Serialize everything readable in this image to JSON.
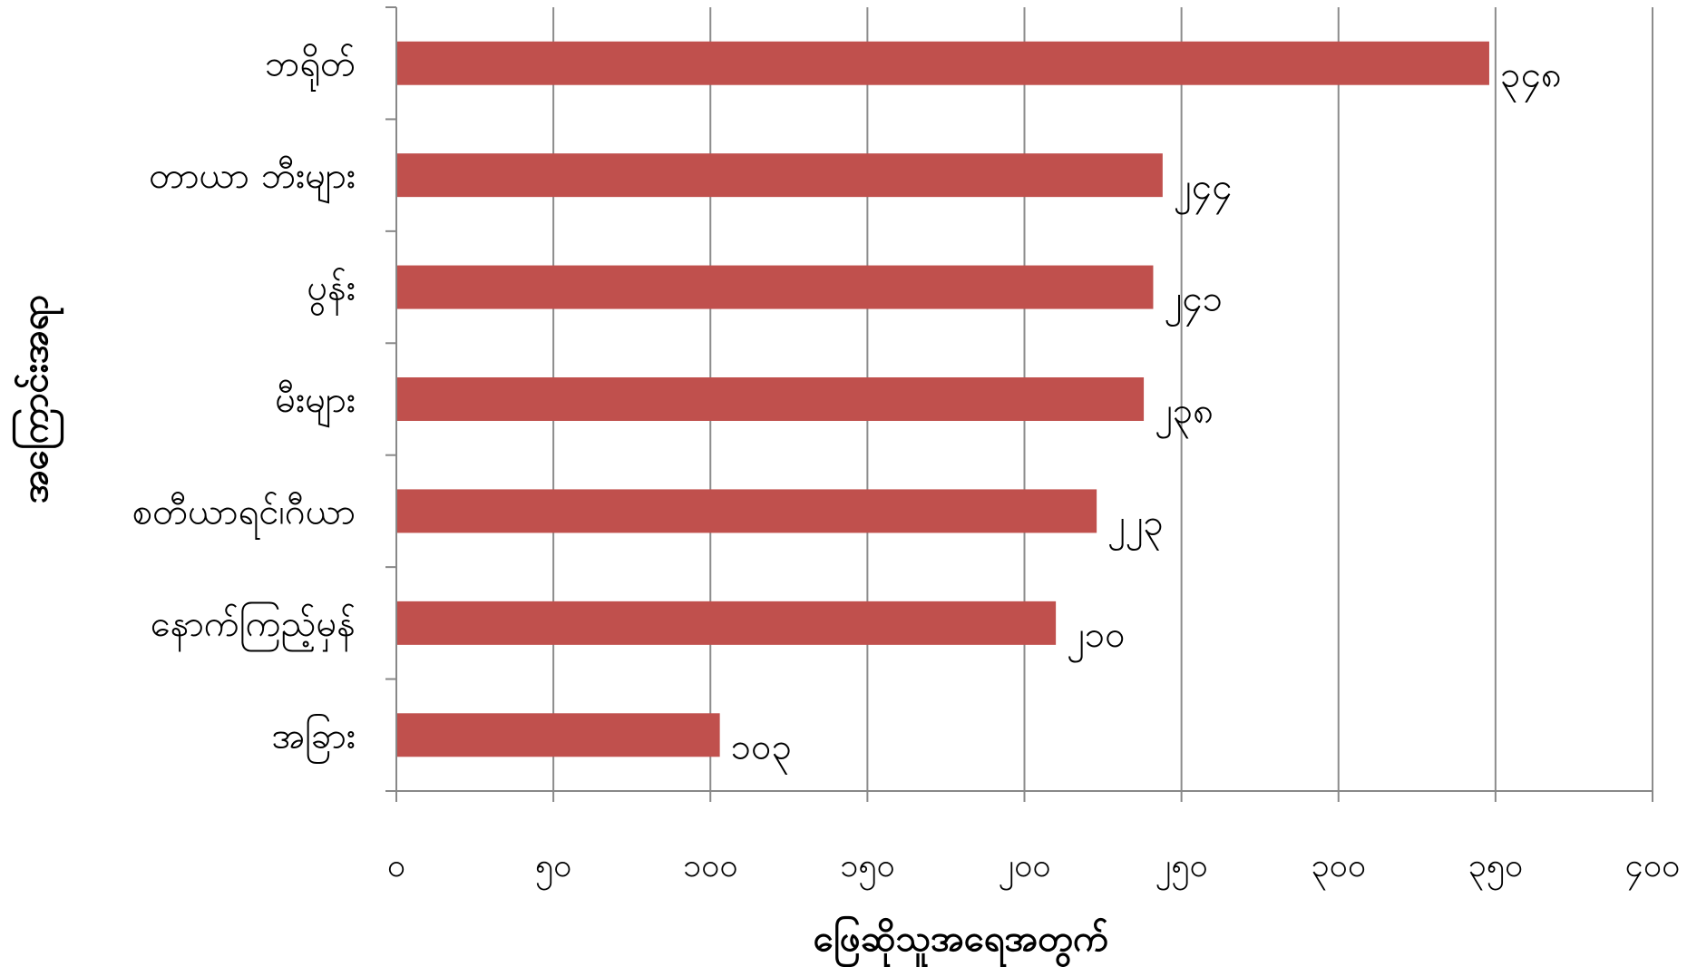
{
  "chart_data": {
    "type": "bar",
    "orientation": "horizontal",
    "categories": [
      "ဘရိုတ်",
      "တာယာ ဘီးများ",
      "ပွန်း",
      "မီးများ",
      "စတီယာရင်၊ဂီယာ",
      "နောက်ကြည့်မှန်",
      "အခြား"
    ],
    "values": [
      348,
      244,
      241,
      238,
      223,
      210,
      103
    ],
    "value_labels": [
      "၃၄၈",
      "၂၄၄",
      "၂၄၁",
      "၂၃၈",
      "၂၂၃",
      "၂၁၀",
      "၁၀၃"
    ],
    "xlim": [
      0,
      400
    ],
    "x_ticks": [
      0,
      50,
      100,
      150,
      200,
      250,
      300,
      350,
      400
    ],
    "x_tick_labels": [
      "၀",
      "၅၀",
      "၁၀၀",
      "၁၅၀",
      "၂၀၀",
      "၂၅၀",
      "၃၀၀",
      "၃၅၀",
      "၄၀၀"
    ],
    "xlabel": "ဖြေဆိုသူအရေအတွက်",
    "ylabel": "အကြောင်းအရာ",
    "grid": "vertical",
    "bar_color": "#c0504d"
  }
}
